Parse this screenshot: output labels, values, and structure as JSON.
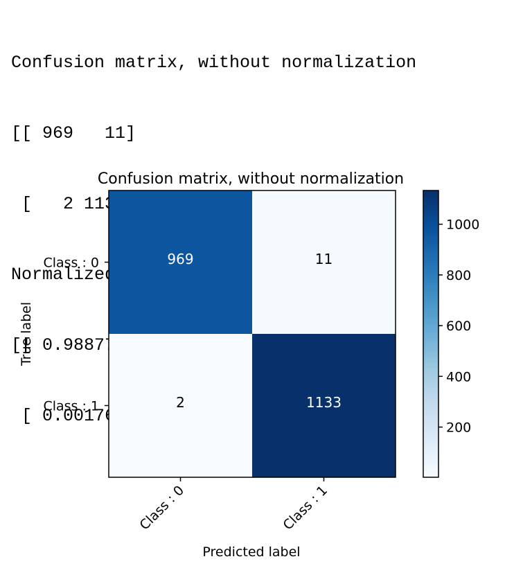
{
  "console": {
    "lines": [
      "Confusion matrix, without normalization",
      "[[ 969   11]",
      " [   2 1133]]",
      "Normalized confusion matrix",
      "[[ 0.98877551  0.01122449]",
      " [ 0.00176211  0.99823789]]"
    ]
  },
  "chart_data": {
    "type": "heatmap",
    "title": "Confusion matrix, without normalization",
    "xlabel": "Predicted label",
    "ylabel": "True label",
    "x_categories": [
      "Class : 0",
      "Class : 1"
    ],
    "y_categories": [
      "Class : 0",
      "Class : 1"
    ],
    "values": [
      [
        969,
        11
      ],
      [
        2,
        1133
      ]
    ],
    "colormap": "Blues",
    "color_low": "#f7fbff",
    "color_high": "#08306b",
    "colorbar": {
      "ticks": [
        200,
        400,
        600,
        800,
        1000
      ],
      "tick_labels": [
        "200",
        "400",
        "600",
        "800",
        "1000"
      ],
      "range": [
        2,
        1133
      ]
    },
    "x_tick_rotation": "45 degrees",
    "grid": false
  }
}
